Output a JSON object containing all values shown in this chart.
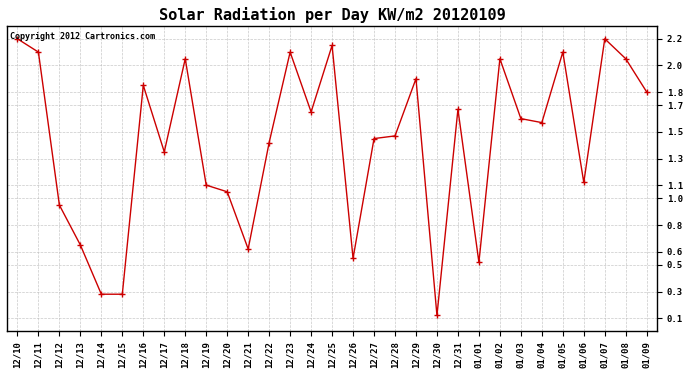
{
  "title": "Solar Radiation per Day KW/m2 20120109",
  "copyright": "Copyright 2012 Cartronics.com",
  "labels": [
    "12/10",
    "12/11",
    "12/12",
    "12/13",
    "12/14",
    "12/15",
    "12/16",
    "12/17",
    "12/18",
    "12/19",
    "12/20",
    "12/21",
    "12/22",
    "12/23",
    "12/24",
    "12/25",
    "12/26",
    "12/27",
    "12/28",
    "12/29",
    "12/30",
    "12/31",
    "01/01",
    "01/02",
    "01/03",
    "01/04",
    "01/05",
    "01/06",
    "01/07",
    "01/08",
    "01/09"
  ],
  "values": [
    2.2,
    2.1,
    0.95,
    0.65,
    0.28,
    0.28,
    1.85,
    1.35,
    2.05,
    1.1,
    1.05,
    0.62,
    1.42,
    2.1,
    1.65,
    2.15,
    0.55,
    1.45,
    1.47,
    1.9,
    0.12,
    1.67,
    0.52,
    2.05,
    1.6,
    1.57,
    2.1,
    1.12,
    2.2,
    2.05,
    1.8
  ],
  "line_color": "#cc0000",
  "marker_color": "#cc0000",
  "bg_color": "#ffffff",
  "grid_color": "#bbbbbb",
  "ylim": [
    0.0,
    2.3
  ],
  "yticks": [
    0.1,
    0.3,
    0.5,
    0.6,
    0.8,
    1.0,
    1.1,
    1.3,
    1.5,
    1.7,
    1.8,
    2.0,
    2.2
  ],
  "title_fontsize": 11,
  "tick_fontsize": 6.5,
  "copyright_fontsize": 6
}
